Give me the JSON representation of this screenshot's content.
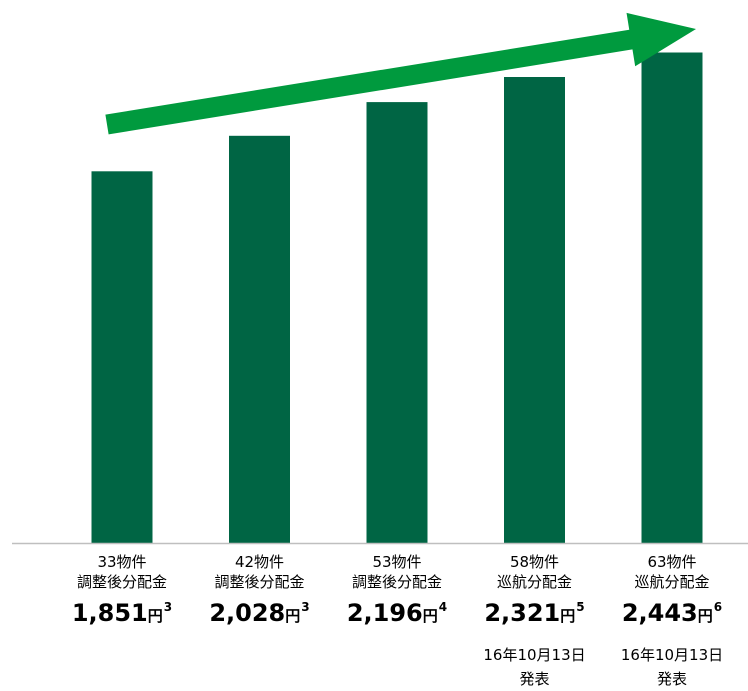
{
  "chart_data": {
    "type": "bar",
    "bar_color": "#006544",
    "arrow_color": "#009a3e",
    "axis_color": "#bfbfbf",
    "ylim": [
      0,
      2550
    ],
    "categories": [
      {
        "count": "33物件",
        "metric": "調整後分配金",
        "value": 1851,
        "label": "1,851",
        "unit": "円",
        "note": "3",
        "date": ""
      },
      {
        "count": "42物件",
        "metric": "調整後分配金",
        "value": 2028,
        "label": "2,028",
        "unit": "円",
        "note": "3",
        "date": ""
      },
      {
        "count": "53物件",
        "metric": "調整後分配金",
        "value": 2196,
        "label": "2,196",
        "unit": "円",
        "note": "4",
        "date": ""
      },
      {
        "count": "58物件",
        "metric": "巡航分配金",
        "value": 2321,
        "label": "2,321",
        "unit": "円",
        "note": "5",
        "date": "16年10月13日\n発表"
      },
      {
        "count": "63物件",
        "metric": "巡航分配金",
        "value": 2443,
        "label": "2,443",
        "unit": "円",
        "note": "6",
        "date": "16年10月13日\n発表"
      }
    ]
  }
}
